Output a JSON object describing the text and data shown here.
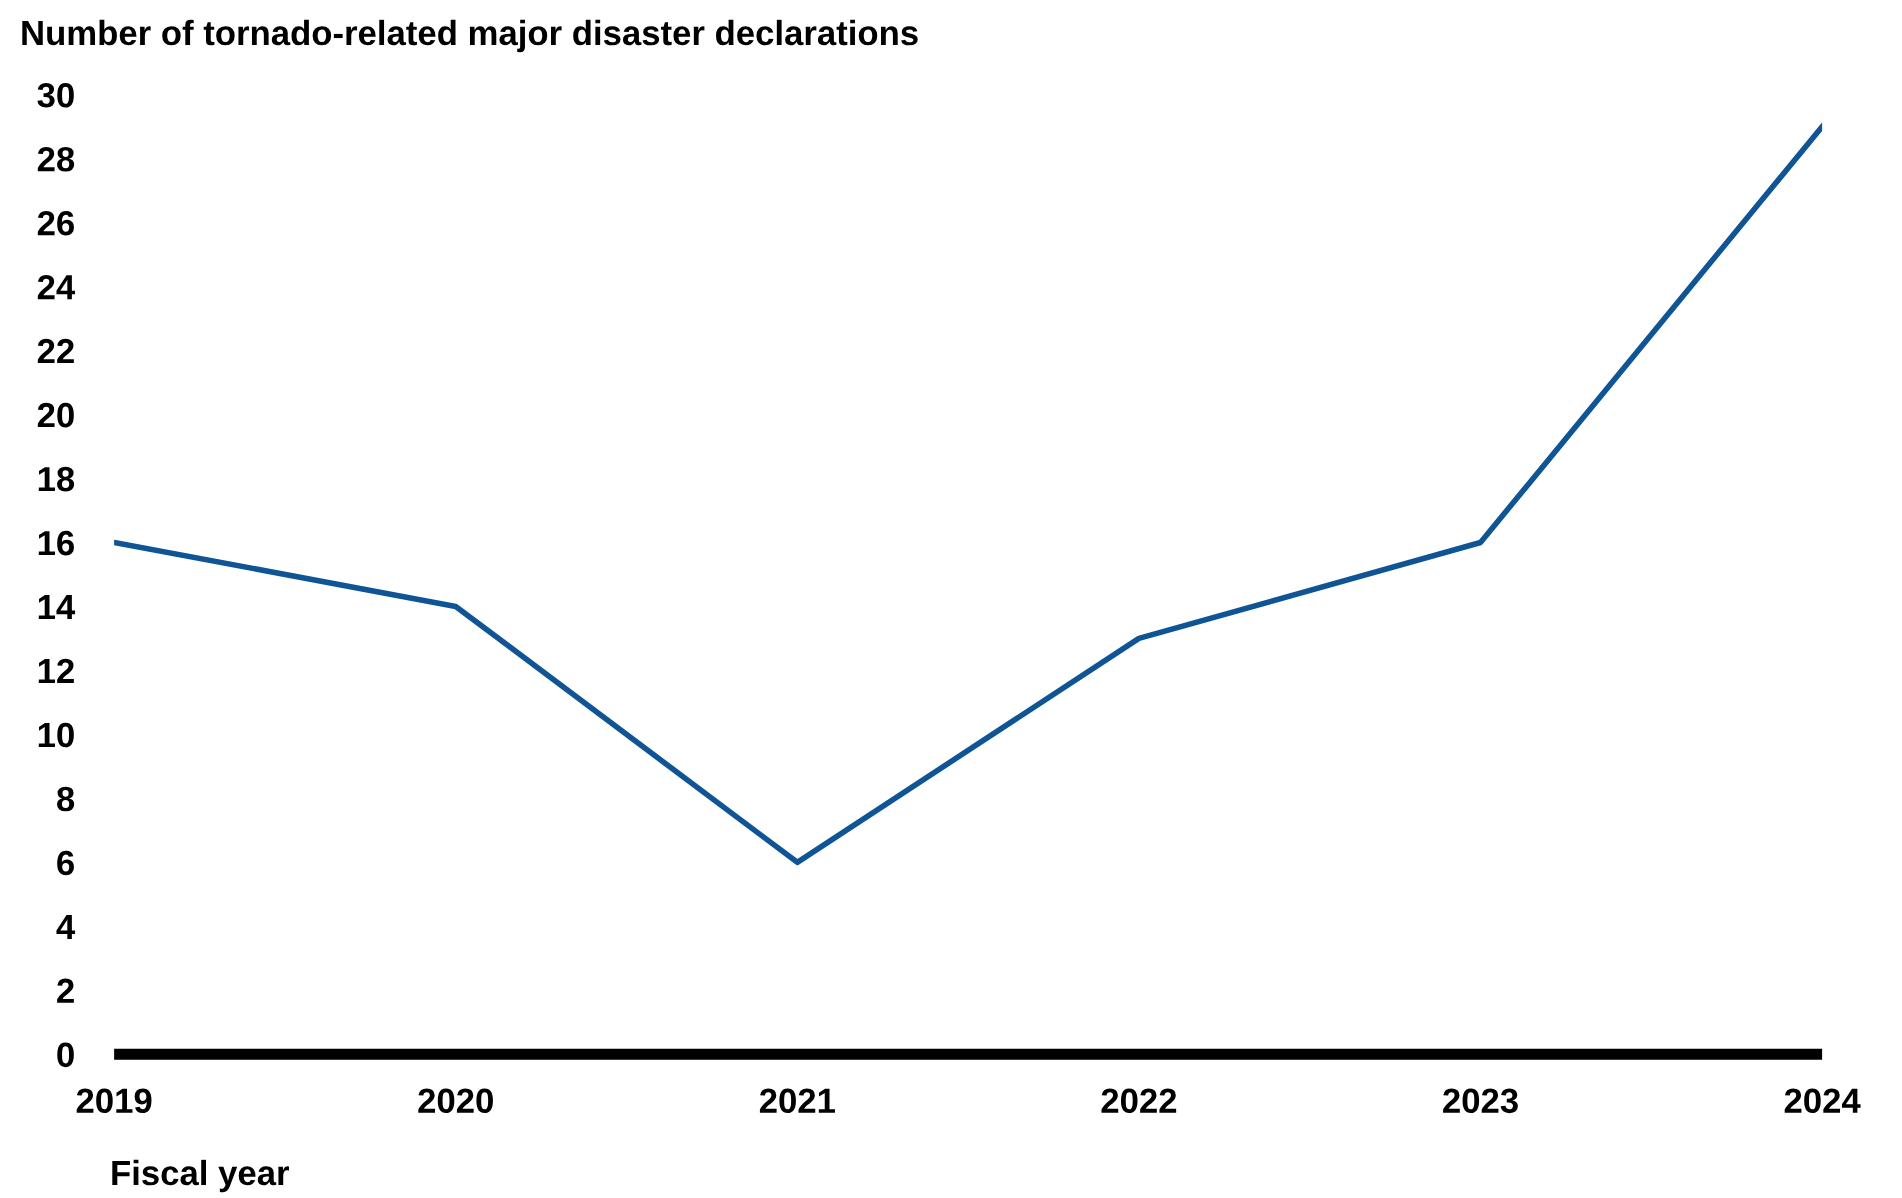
{
  "chart_data": {
    "type": "line",
    "ylabel": "Number of tornado-related major disaster declarations",
    "xlabel": "Fiscal year",
    "categories": [
      "2019",
      "2020",
      "2021",
      "2022",
      "2023",
      "2024"
    ],
    "series": [
      {
        "color": "#0f5495",
        "values": [
          16,
          14,
          6,
          13,
          16,
          29
        ]
      }
    ],
    "ylim": [
      0,
      30
    ],
    "yticks": [
      0,
      2,
      4,
      6,
      8,
      10,
      12,
      14,
      16,
      18,
      20,
      22,
      24,
      26,
      28,
      30
    ],
    "grid": false,
    "marker": "none",
    "line_style": "solid"
  }
}
